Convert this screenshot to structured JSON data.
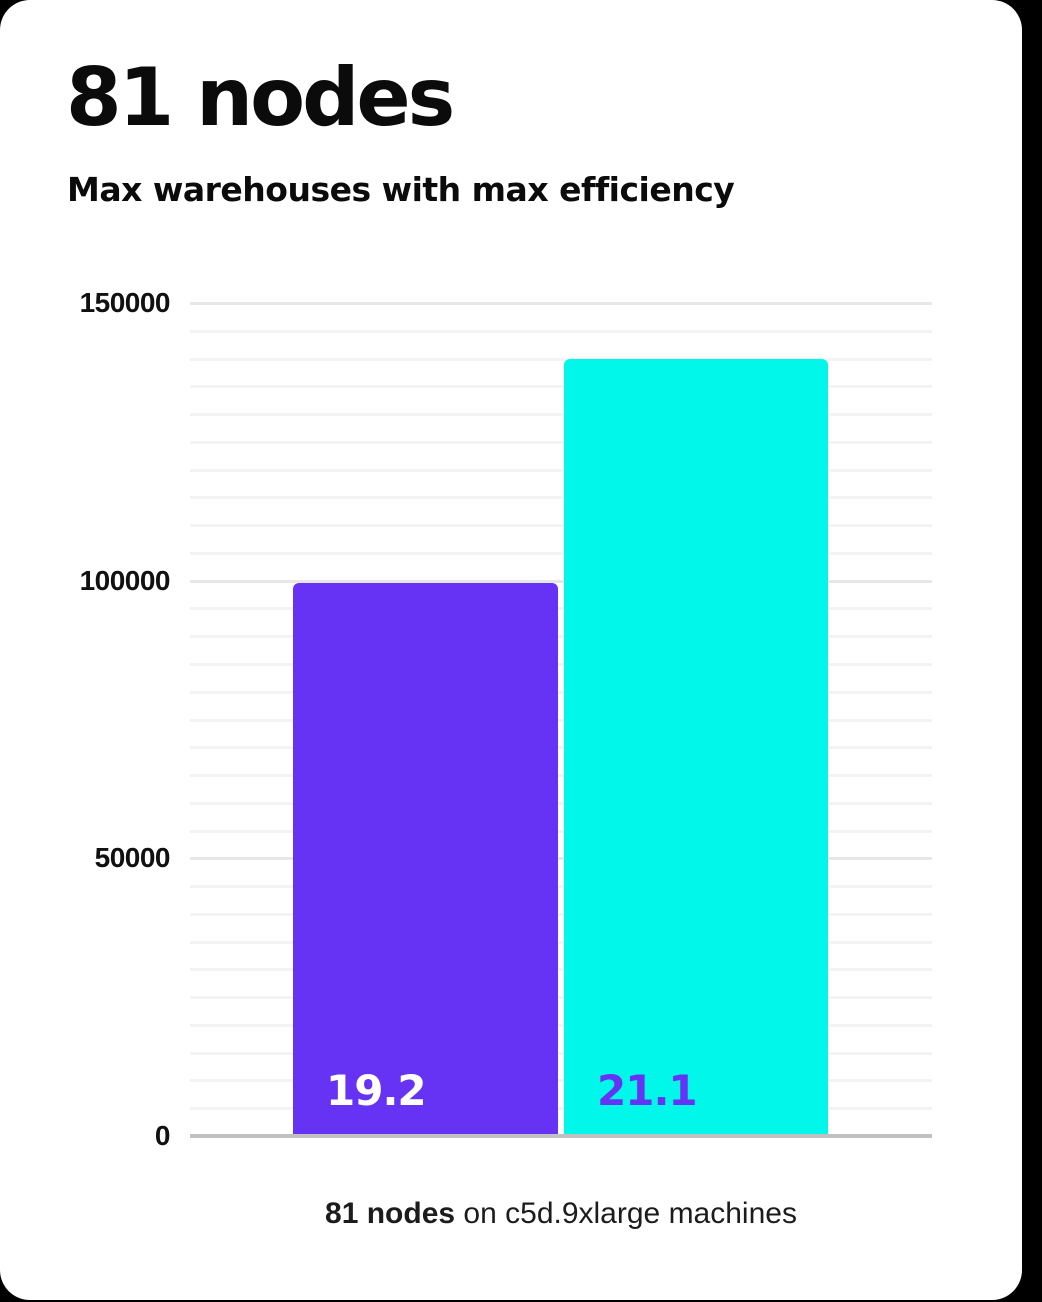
{
  "header": {
    "title": "81 nodes",
    "subtitle": "Max warehouses with max efficiency"
  },
  "caption": {
    "bold_text": "81 nodes",
    "regular_text": " on c5d.9xlarge machines"
  },
  "chart_data": {
    "type": "bar",
    "title": "81 nodes",
    "subtitle": "Max warehouses with max efficiency",
    "categories": [
      "19.2",
      "21.1"
    ],
    "values": [
      99500,
      140000
    ],
    "bar_labels": [
      "19.2",
      "21.1"
    ],
    "bar_colors": [
      "#6633f5",
      "#00f7e9"
    ],
    "bar_label_colors": [
      "#ffffff",
      "#6633f5"
    ],
    "xlabel": "",
    "ylabel": "",
    "ylim": [
      0,
      150000
    ],
    "yticks": [
      0,
      50000,
      100000,
      150000
    ],
    "minor_grid_step": 5000,
    "major_grid_step": 50000,
    "grid": "horizontal",
    "legend_position": "none",
    "caption": "81 nodes on c5d.9xlarge machines"
  },
  "colors": {
    "background": "#000000",
    "card": "#ffffff",
    "bar_purple": "#6633f5",
    "bar_cyan": "#00f7e9",
    "minor_gridline": "#f3f3f3",
    "major_gridline": "#e7e7e7",
    "axis_line": "#c1c1c1",
    "text": "#0b0b0b"
  }
}
